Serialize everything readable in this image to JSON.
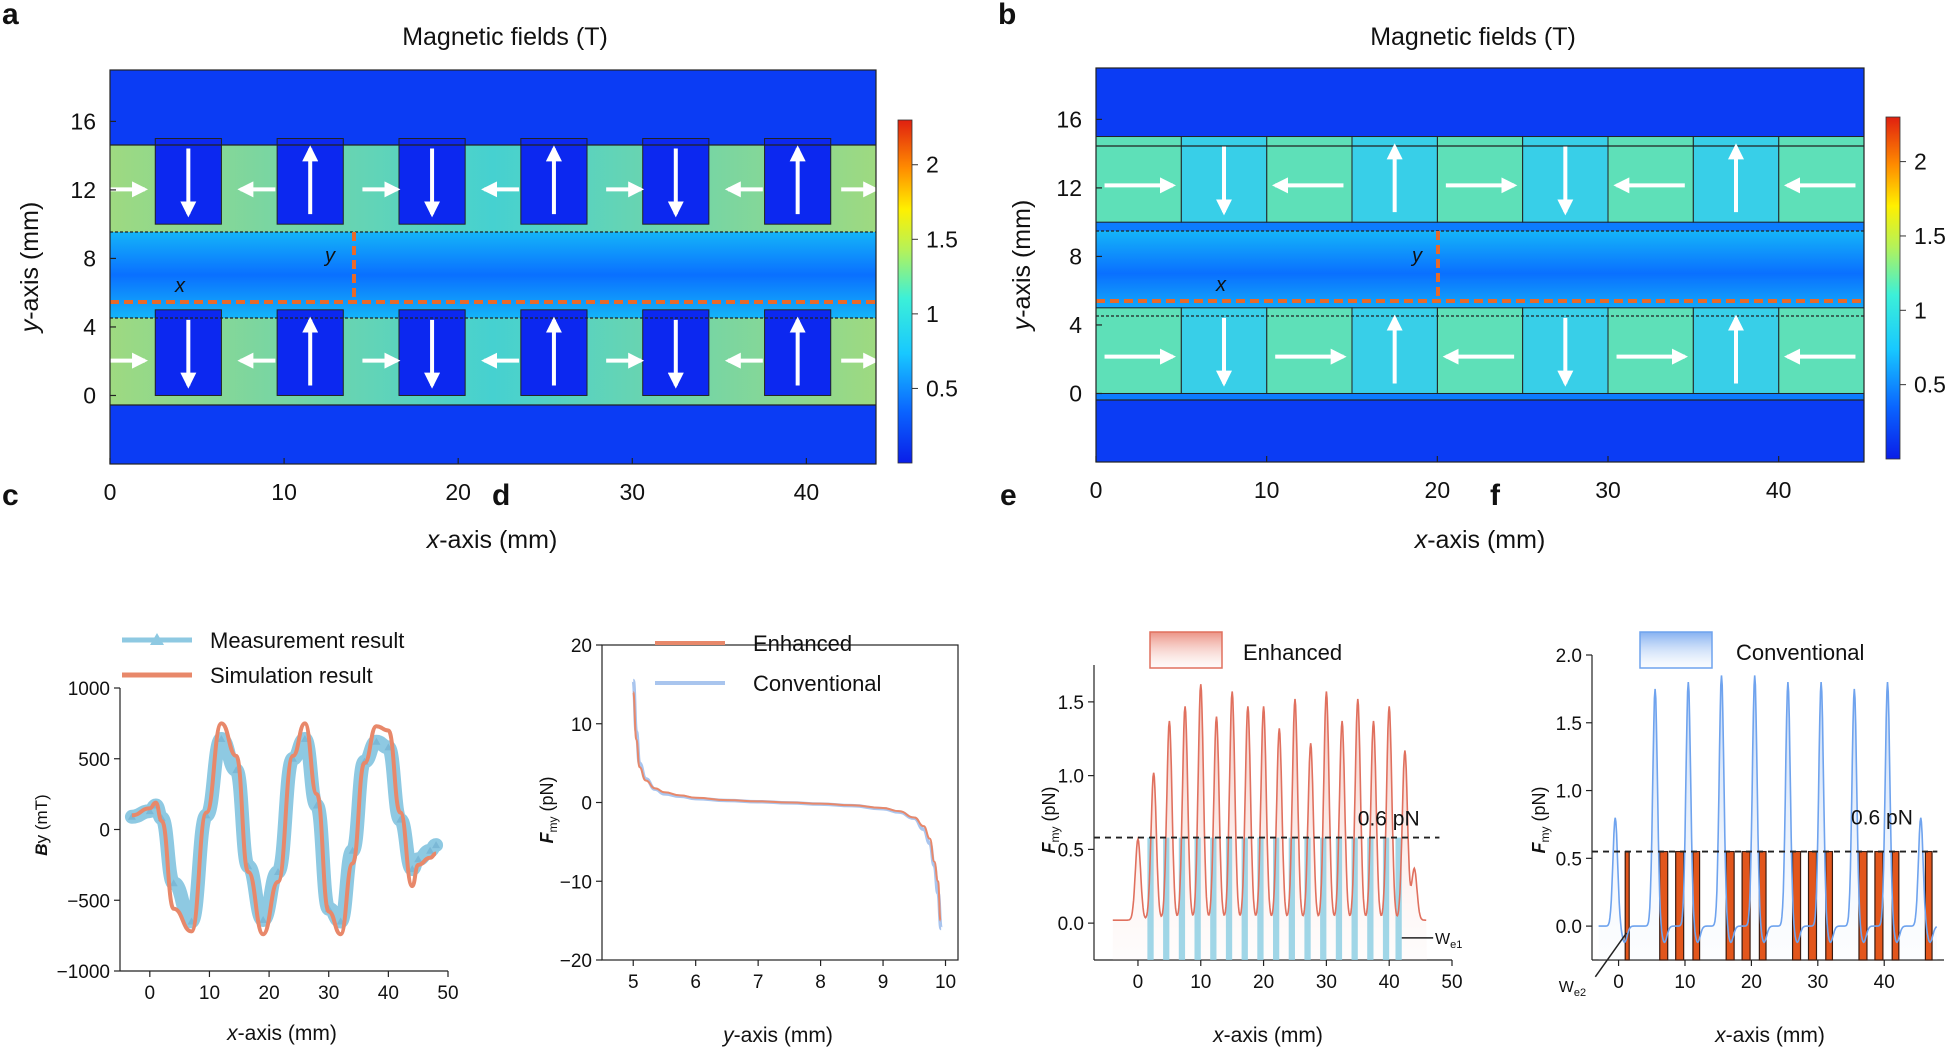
{
  "chart_data": [
    {
      "panel": "a",
      "type": "heatmap",
      "title": "Magnetic fields (T)",
      "xlabel_var": "x",
      "xlabel_rest": "-axis (mm)",
      "ylabel_var": "y",
      "ylabel_rest": "-axis (mm)",
      "xticks": [
        "0",
        "10",
        "20",
        "30",
        "40"
      ],
      "yticks": [
        "0",
        "4",
        "8",
        "12",
        "16"
      ],
      "colorbar_ticks": [
        "0.5",
        "1",
        "1.5",
        "2"
      ],
      "colorbar_range": [
        0,
        2.3
      ],
      "xlim": [
        0,
        44
      ],
      "ylim": [
        -4,
        19
      ],
      "line_labels": [
        "x",
        "y"
      ],
      "magnet_strip_y": [
        [
          10,
          15
        ],
        [
          0,
          5
        ]
      ],
      "x_line_y": 6,
      "y_line_x": 14
    },
    {
      "panel": "b",
      "type": "heatmap",
      "title": "Magnetic fields (T)",
      "xlabel_var": "x",
      "xlabel_rest": "-axis (mm)",
      "ylabel_var": "y",
      "ylabel_rest": "-axis (mm)",
      "xticks": [
        "0",
        "10",
        "20",
        "30",
        "40"
      ],
      "yticks": [
        "0",
        "4",
        "8",
        "12",
        "16"
      ],
      "colorbar_ticks": [
        "0.5",
        "1",
        "1.5",
        "2"
      ],
      "colorbar_range": [
        0,
        2.3
      ],
      "xlim": [
        0,
        45
      ],
      "ylim": [
        -4,
        19
      ],
      "line_labels": [
        "x",
        "y"
      ],
      "x_line_y": 6,
      "y_line_x": 20
    },
    {
      "panel": "c",
      "type": "line",
      "xlabel_var": "x",
      "xlabel_rest": "-axis (mm)",
      "ylabel_var": "B",
      "ylabel_rest": "y (mT)",
      "xlim": [
        -5,
        50
      ],
      "ylim": [
        -1000,
        1000
      ],
      "xticks": [
        "0",
        "10",
        "20",
        "30",
        "40",
        "50"
      ],
      "yticks": [
        "1000",
        "500",
        "0",
        "−500",
        "−1000"
      ],
      "legend": [
        "Measurement result",
        "Simulation result"
      ],
      "series": [
        {
          "name": "Measurement result",
          "x": [
            -3,
            0,
            1,
            2,
            4,
            7,
            9.5,
            12,
            14.5,
            16.5,
            19,
            21.5,
            24,
            26,
            28,
            30,
            32,
            34,
            36,
            38,
            40,
            42,
            44,
            45,
            47,
            48
          ],
          "y": [
            90,
            130,
            170,
            80,
            -380,
            -650,
            100,
            640,
            420,
            -260,
            -640,
            -300,
            500,
            640,
            170,
            -560,
            -650,
            -150,
            480,
            620,
            580,
            70,
            -280,
            -210,
            -150,
            -110
          ]
        },
        {
          "name": "Simulation result",
          "x": [
            -3,
            0,
            1,
            2,
            4,
            7,
            9.5,
            12,
            14.5,
            16.5,
            19,
            21.5,
            24,
            26,
            28,
            30,
            32,
            34,
            36,
            38,
            40,
            42,
            44,
            45,
            47,
            48
          ],
          "y": [
            100,
            150,
            190,
            60,
            -560,
            -720,
            120,
            750,
            520,
            -300,
            -740,
            -370,
            520,
            750,
            250,
            -580,
            -740,
            -240,
            470,
            730,
            700,
            120,
            -400,
            -250,
            -200,
            -170
          ]
        }
      ]
    },
    {
      "panel": "d",
      "type": "line",
      "xlabel_var": "y",
      "xlabel_rest": "-axis (mm)",
      "ylabel_var": "F",
      "ylabel_sub": "my",
      "ylabel_rest": " (pN)",
      "xlim": [
        4.5,
        10.2
      ],
      "ylim": [
        -20,
        20
      ],
      "xticks": [
        "5",
        "6",
        "7",
        "8",
        "9",
        "10"
      ],
      "yticks": [
        "20",
        "10",
        "0",
        "−10",
        "−20"
      ],
      "legend": [
        "Enhanced",
        "Conventional"
      ],
      "series": [
        {
          "name": "Enhanced",
          "x": [
            5.0,
            5.05,
            5.1,
            5.2,
            5.35,
            5.5,
            5.75,
            6.0,
            6.5,
            7.0,
            7.5,
            8.0,
            8.5,
            9.0,
            9.25,
            9.5,
            9.65,
            9.75,
            9.82,
            9.88,
            9.92
          ],
          "y": [
            14,
            8,
            4.5,
            2.8,
            1.8,
            1.3,
            0.9,
            0.6,
            0.3,
            0.15,
            0.0,
            -0.15,
            -0.35,
            -0.7,
            -1.1,
            -1.9,
            -3.0,
            -4.6,
            -7.5,
            -10,
            -15
          ]
        },
        {
          "name": "Conventional",
          "x": [
            5.0,
            5.05,
            5.1,
            5.2,
            5.35,
            5.5,
            5.75,
            6.0,
            6.5,
            7.0,
            7.5,
            8.0,
            8.5,
            9.0,
            9.25,
            9.5,
            9.65,
            9.75,
            9.82,
            9.88,
            9.93
          ],
          "y": [
            15.5,
            9,
            5,
            3.0,
            1.7,
            1.1,
            0.8,
            0.5,
            0.25,
            0.1,
            -0.05,
            -0.2,
            -0.4,
            -0.8,
            -1.2,
            -2.0,
            -3.4,
            -5.2,
            -8,
            -11.5,
            -16
          ]
        }
      ]
    },
    {
      "panel": "e",
      "type": "area",
      "xlabel_var": "x",
      "xlabel_rest": "-axis (mm)",
      "ylabel_var": "F",
      "ylabel_sub": "my",
      "ylabel_rest": " (pN)",
      "xlim": [
        -7,
        50
      ],
      "ylim": [
        -0.25,
        1.75
      ],
      "xticks": [
        "0",
        "10",
        "20",
        "30",
        "40",
        "50"
      ],
      "yticks": [
        "1.5",
        "1.0",
        "0.5",
        "0.0"
      ],
      "legend": [
        "Enhanced"
      ],
      "threshold": 0.58,
      "threshold_label": "0.6 pN",
      "width_label_base": "W",
      "width_label_sub": "e1",
      "peaks_x": [
        0,
        2.5,
        5.0,
        7.5,
        10.0,
        12.5,
        15.0,
        17.5,
        20.0,
        22.5,
        25.0,
        27.5,
        30.0,
        32.5,
        35.0,
        37.5,
        40.0,
        42.5,
        44.0
      ],
      "peaks_y": [
        0.55,
        1.0,
        1.35,
        1.45,
        1.6,
        1.38,
        1.55,
        1.45,
        1.45,
        1.3,
        1.5,
        1.2,
        1.55,
        1.35,
        1.5,
        1.35,
        1.45,
        1.15,
        0.35
      ],
      "bands_x": [
        [
          1.5,
          2.5
        ],
        [
          4.0,
          5.0
        ],
        [
          6.5,
          7.5
        ],
        [
          9.0,
          10.0
        ],
        [
          11.5,
          12.5
        ],
        [
          14.0,
          15.0
        ],
        [
          16.5,
          17.5
        ],
        [
          19.0,
          20.0
        ],
        [
          21.5,
          22.5
        ],
        [
          24.0,
          25.0
        ],
        [
          26.5,
          27.5
        ],
        [
          29.0,
          30.0
        ],
        [
          31.5,
          32.5
        ],
        [
          34.0,
          35.0
        ],
        [
          36.5,
          37.5
        ],
        [
          39.0,
          40.0
        ],
        [
          41.0,
          42.0
        ]
      ]
    },
    {
      "panel": "f",
      "type": "area",
      "xlabel_var": "x",
      "xlabel_rest": "-axis (mm)",
      "ylabel_var": "F",
      "ylabel_sub": "my",
      "ylabel_rest": " (pN)",
      "xlim": [
        -4,
        49
      ],
      "ylim": [
        -0.25,
        2.0
      ],
      "xticks": [
        "0",
        "10",
        "20",
        "30",
        "40"
      ],
      "yticks": [
        "2.0",
        "1.5",
        "1.0",
        "0.5",
        "0.0"
      ],
      "legend": [
        "Conventional"
      ],
      "threshold": 0.55,
      "threshold_label": "0.6 pN",
      "width_label_base": "W",
      "width_label_sub": "e2",
      "peaks_x": [
        -0.5,
        5.5,
        10.5,
        15.5,
        20.5,
        25.5,
        30.5,
        35.5,
        40.5,
        45.5
      ],
      "peaks_y": [
        0.8,
        1.75,
        1.8,
        1.85,
        1.85,
        1.8,
        1.8,
        1.75,
        1.8,
        0.8
      ],
      "bands_x": [
        [
          1.0,
          1.6
        ],
        [
          6.2,
          7.4
        ],
        [
          8.6,
          9.8
        ],
        [
          11.2,
          12.2
        ],
        [
          16.2,
          17.4
        ],
        [
          18.6,
          19.8
        ],
        [
          21.2,
          22.2
        ],
        [
          26.2,
          27.4
        ],
        [
          28.6,
          29.8
        ],
        [
          31.2,
          32.2
        ],
        [
          36.2,
          37.4
        ],
        [
          38.6,
          39.8
        ],
        [
          41.2,
          42.2
        ],
        [
          46.2,
          47.2
        ]
      ]
    }
  ],
  "panel_letters": [
    "a",
    "b",
    "c",
    "d",
    "e",
    "f"
  ]
}
